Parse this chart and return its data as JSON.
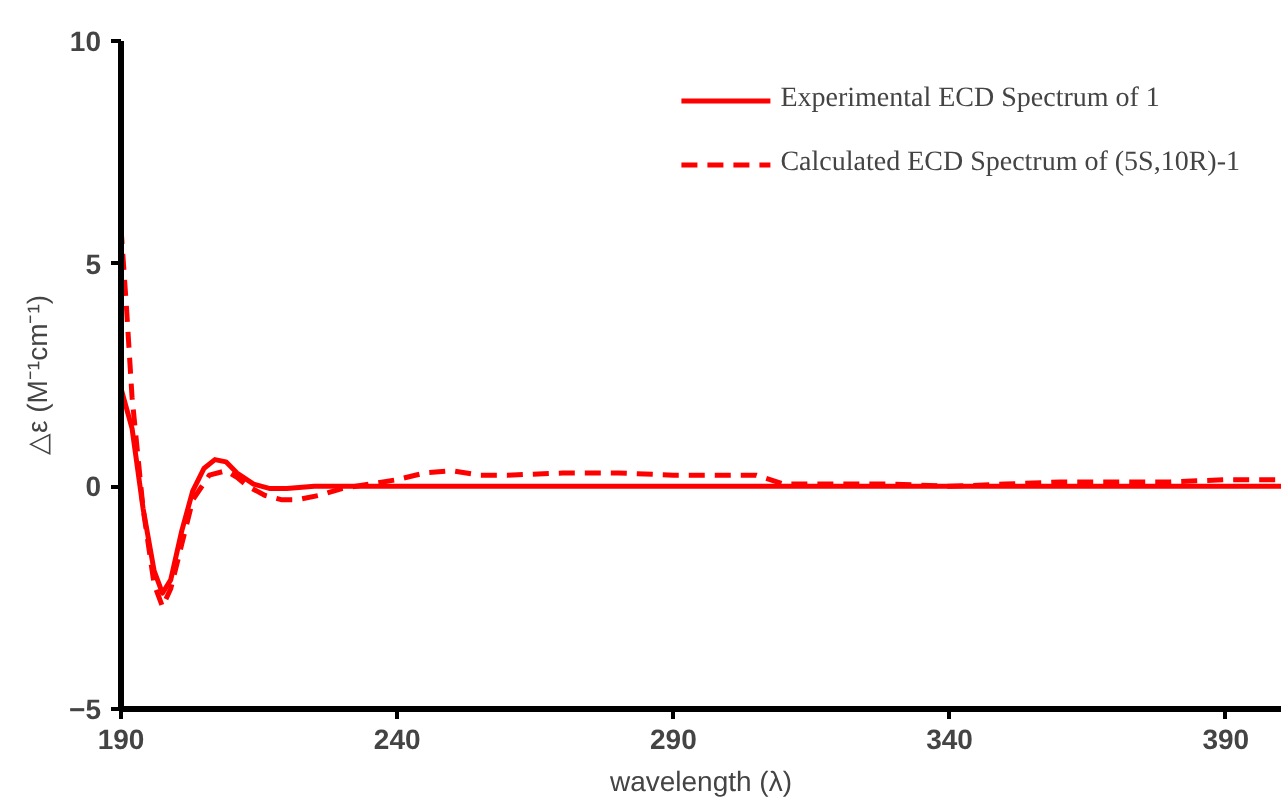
{
  "chart_data": {
    "type": "line",
    "xlabel": "wavelength (λ)",
    "ylabel": "△ε (M⁻¹cm⁻¹)",
    "xlim": [
      190,
      400
    ],
    "xticks": [
      190,
      240,
      290,
      340,
      390
    ],
    "ylim": [
      -5,
      10
    ],
    "yticks": [
      -5,
      0,
      5,
      10
    ],
    "grid": false,
    "legend": "top right",
    "marker": "none",
    "series": [
      {
        "name": "Experimental ECD Spectrum of 1",
        "color": "#ff0000",
        "line_style": "solid",
        "x": [
          190,
          192,
          194,
          196,
          197.5,
          199,
          201,
          203,
          205,
          207,
          209,
          211,
          214,
          217,
          220,
          225,
          230,
          260,
          300,
          350,
          400
        ],
        "values": [
          2.2,
          1.3,
          -0.5,
          -1.9,
          -2.4,
          -2.1,
          -1.0,
          -0.1,
          0.4,
          0.6,
          0.55,
          0.3,
          0.05,
          -0.05,
          -0.05,
          0.0,
          0.0,
          0.0,
          0.0,
          0.0,
          0.0
        ]
      },
      {
        "name": "Calculated ECD Spectrum of (5S,10R)-1",
        "color": "#ff0000",
        "line_style": "dashed",
        "x": [
          190,
          191,
          192,
          194,
          196,
          197.5,
          199,
          201,
          203,
          206,
          209,
          211,
          213,
          216,
          219,
          222,
          226,
          230,
          235,
          240,
          245,
          250,
          255,
          260,
          270,
          280,
          290,
          300,
          305,
          310,
          320,
          330,
          340,
          350,
          360,
          370,
          380,
          390,
          400
        ],
        "values": [
          5.8,
          4.0,
          2.0,
          -0.5,
          -2.2,
          -2.7,
          -2.3,
          -1.3,
          -0.3,
          0.25,
          0.35,
          0.2,
          0.0,
          -0.2,
          -0.3,
          -0.3,
          -0.2,
          -0.05,
          0.05,
          0.15,
          0.3,
          0.35,
          0.25,
          0.25,
          0.3,
          0.3,
          0.25,
          0.25,
          0.25,
          0.05,
          0.05,
          0.05,
          0.0,
          0.05,
          0.1,
          0.1,
          0.1,
          0.15,
          0.15
        ]
      }
    ]
  }
}
